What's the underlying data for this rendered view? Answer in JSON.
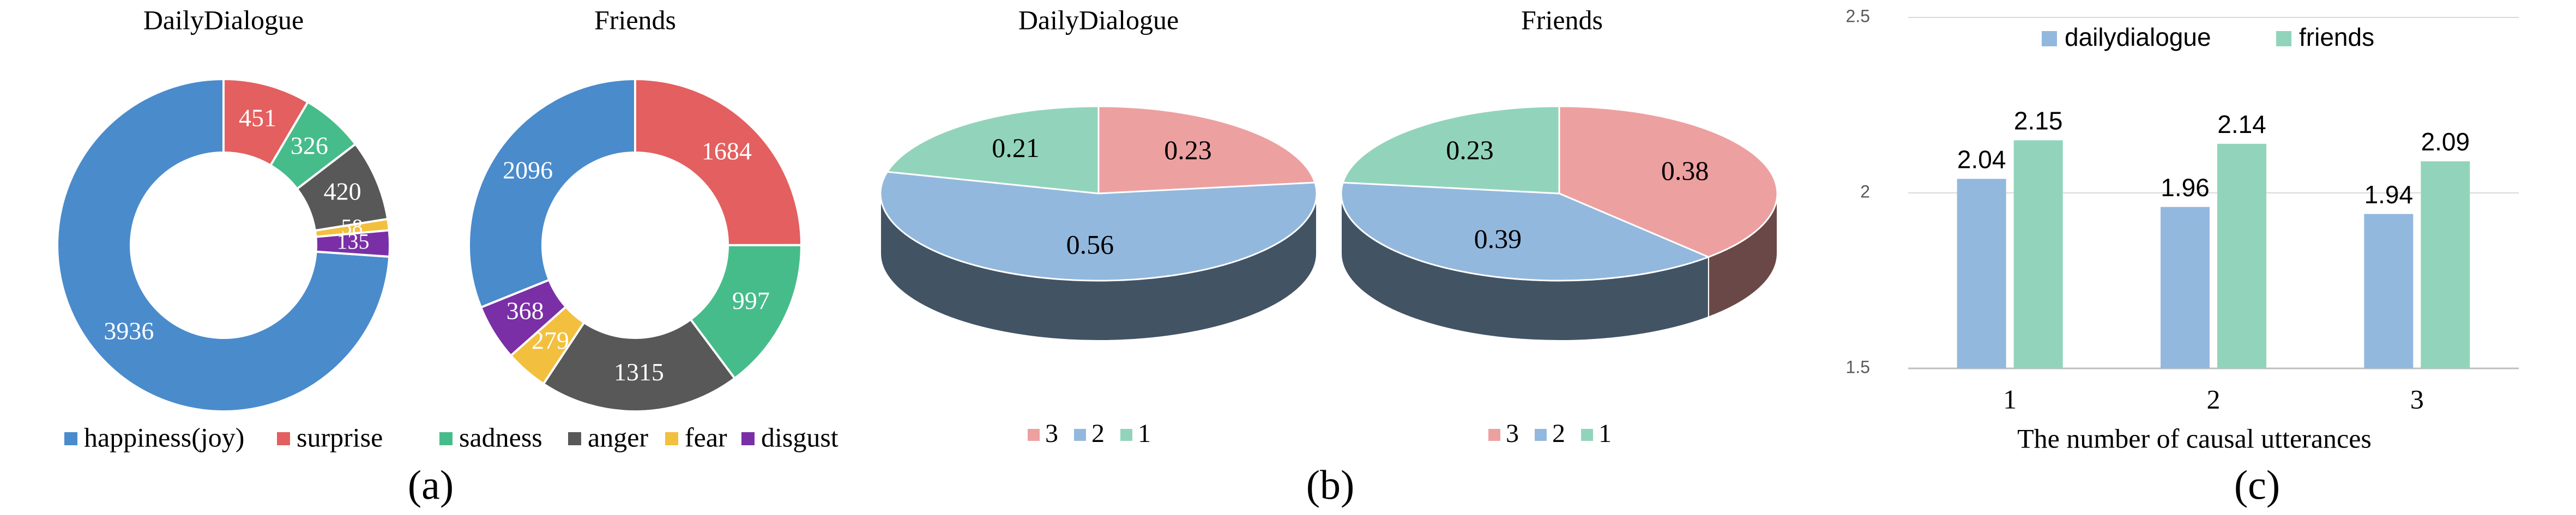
{
  "panels": [
    {
      "id": "a",
      "label": "(a)"
    },
    {
      "id": "b",
      "label": "(b)"
    },
    {
      "id": "c",
      "label": "(c)"
    }
  ],
  "chart_data": [
    {
      "type": "pie",
      "variant": "donut",
      "title": "DailyDialogue",
      "categories": [
        "happiness(joy)",
        "surprise",
        "sadness",
        "anger",
        "fear",
        "disgust"
      ],
      "values": [
        3936,
        451,
        326,
        420,
        58,
        135
      ],
      "colors": [
        "#4a8bcc",
        "#e45f5f",
        "#47bc8b",
        "#585858",
        "#f2c03e",
        "#7a2fa6"
      ]
    },
    {
      "type": "pie",
      "variant": "donut",
      "title": "Friends",
      "categories": [
        "happiness(joy)",
        "surprise",
        "sadness",
        "anger",
        "fear",
        "disgust"
      ],
      "values": [
        2096,
        1684,
        997,
        1315,
        279,
        368
      ],
      "colors": [
        "#4a8bcc",
        "#e45f5f",
        "#47bc8b",
        "#585858",
        "#f2c03e",
        "#7a2fa6"
      ]
    },
    {
      "type": "pie",
      "variant": "3d",
      "title": "DailyDialogue",
      "categories": [
        "3",
        "2",
        "1"
      ],
      "values": [
        0.23,
        0.56,
        0.21
      ],
      "colors": [
        "#eda0a0",
        "#93b8de",
        "#92d4bb"
      ]
    },
    {
      "type": "pie",
      "variant": "3d",
      "title": "Friends",
      "categories": [
        "3",
        "2",
        "1"
      ],
      "values": [
        0.38,
        0.39,
        0.23
      ],
      "colors": [
        "#eda0a0",
        "#93b8de",
        "#92d4bb"
      ]
    },
    {
      "type": "bar",
      "title": "",
      "xlabel": "The number of causal utterances",
      "ylabel": "",
      "categories": [
        "1",
        "2",
        "3"
      ],
      "ylim": [
        1.5,
        2.5
      ],
      "yticks": [
        "1.5",
        "2",
        "2.5"
      ],
      "grid": true,
      "legend": "top",
      "series": [
        {
          "name": "dailydialogue",
          "values": [
            2.04,
            1.96,
            1.94
          ],
          "labels": [
            "2.04",
            "1.96",
            "1.94"
          ],
          "color": "#93b8de"
        },
        {
          "name": "friends",
          "values": [
            2.15,
            2.14,
            2.09
          ],
          "labels": [
            "2.15",
            "2.14",
            "2.09"
          ],
          "color": "#92d4bb"
        }
      ]
    }
  ]
}
